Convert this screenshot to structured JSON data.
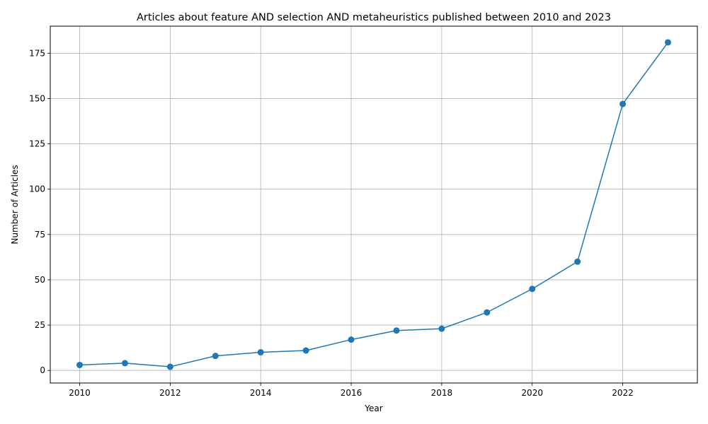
{
  "chart_data": {
    "type": "line",
    "title": "Articles about feature AND selection AND metaheuristics published between 2010 and 2023",
    "xlabel": "Year",
    "ylabel": "Number of Articles",
    "x": [
      2010,
      2011,
      2012,
      2013,
      2014,
      2015,
      2016,
      2017,
      2018,
      2019,
      2020,
      2021,
      2022,
      2023
    ],
    "series": [
      {
        "name": "Articles",
        "values": [
          3,
          4,
          2,
          8,
          10,
          11,
          17,
          22,
          23,
          32,
          45,
          60,
          147,
          181
        ],
        "color": "#1f77b4",
        "marker": "circle"
      }
    ],
    "xlim": [
      2009.35,
      2023.65
    ],
    "ylim": [
      -6.95,
      189.95
    ],
    "xticks": [
      2010,
      2012,
      2014,
      2016,
      2018,
      2020,
      2022
    ],
    "yticks": [
      0,
      25,
      50,
      75,
      100,
      125,
      150,
      175
    ],
    "grid": true,
    "legend": "none"
  }
}
